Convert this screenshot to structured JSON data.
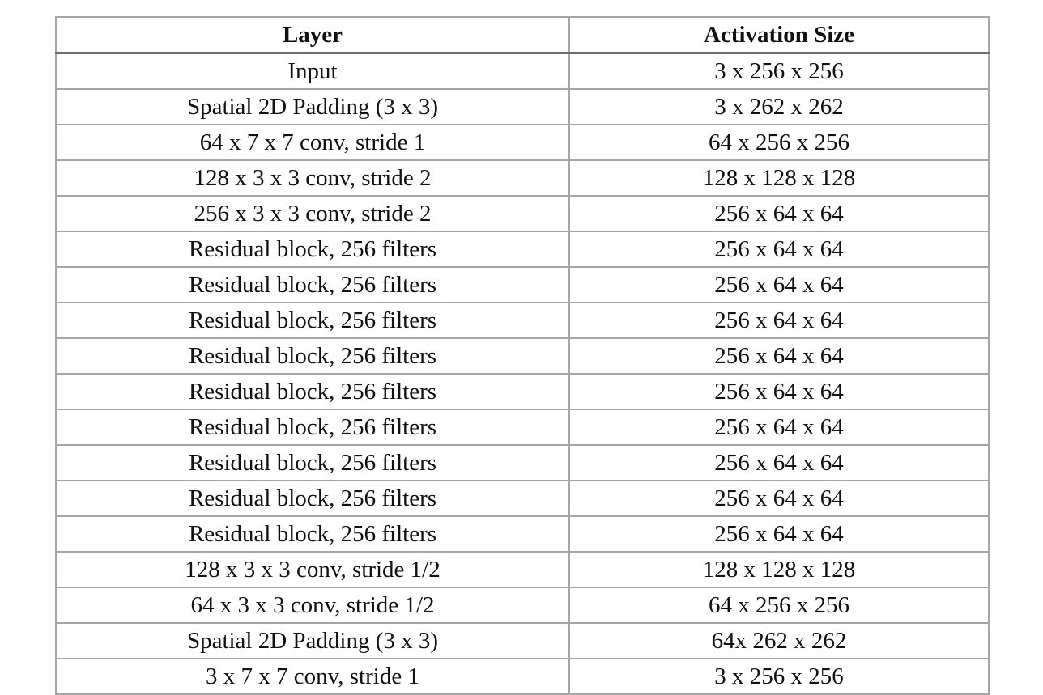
{
  "table": {
    "headers": [
      "Layer",
      "Activation Size"
    ],
    "rows": [
      [
        "Input",
        "3 x 256 x 256"
      ],
      [
        "Spatial 2D Padding (3 x 3)",
        "3 x 262 x 262"
      ],
      [
        "64 x 7 x 7 conv, stride 1",
        "64 x 256 x 256"
      ],
      [
        "128 x 3 x 3 conv, stride 2",
        "128 x 128 x 128"
      ],
      [
        "256 x 3 x 3 conv, stride 2",
        "256 x 64 x 64"
      ],
      [
        "Residual block, 256 filters",
        "256 x 64 x 64"
      ],
      [
        "Residual block, 256 filters",
        "256 x 64 x 64"
      ],
      [
        "Residual block, 256 filters",
        "256 x 64 x 64"
      ],
      [
        "Residual block, 256 filters",
        "256 x 64 x 64"
      ],
      [
        "Residual block, 256 filters",
        "256 x 64 x 64"
      ],
      [
        "Residual block, 256 filters",
        "256 x 64 x 64"
      ],
      [
        "Residual block, 256 filters",
        "256 x 64 x 64"
      ],
      [
        "Residual block, 256 filters",
        "256 x 64 x 64"
      ],
      [
        "Residual block, 256 filters",
        "256 x 64 x 64"
      ],
      [
        "128 x 3 x 3 conv, stride 1/2",
        "128 x 128 x 128"
      ],
      [
        "64 x 3 x 3 conv, stride 1/2",
        "64 x 256 x 256"
      ],
      [
        "Spatial 2D Padding (3 x 3)",
        "64x 262 x 262"
      ],
      [
        "3 x 7 x 7 conv, stride 1",
        "3 x 256 x 256"
      ]
    ]
  }
}
